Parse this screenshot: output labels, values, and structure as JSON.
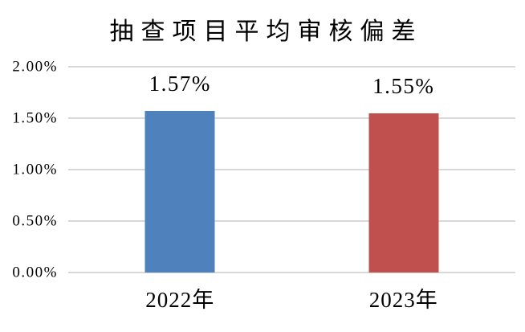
{
  "chart_data": {
    "type": "bar",
    "title": "抽查项目平均审核偏差",
    "categories": [
      "2022年",
      "2023年"
    ],
    "values": [
      1.57,
      1.55
    ],
    "value_labels": [
      "1.57%",
      "1.55%"
    ],
    "series_colors": [
      "#4F81BD",
      "#C0504D"
    ],
    "yticks": [
      "0.00%",
      "0.50%",
      "1.00%",
      "1.50%",
      "2.00%"
    ],
    "ytick_values": [
      0,
      0.5,
      1.0,
      1.5,
      2.0
    ],
    "ylim": [
      0,
      2.0
    ],
    "xlabel": "",
    "ylabel": "",
    "unit": "%",
    "grid": true,
    "legend": "none",
    "gridline_color": "#D9D9D9",
    "text_color": "#000000",
    "background_color": "#FFFFFF"
  }
}
